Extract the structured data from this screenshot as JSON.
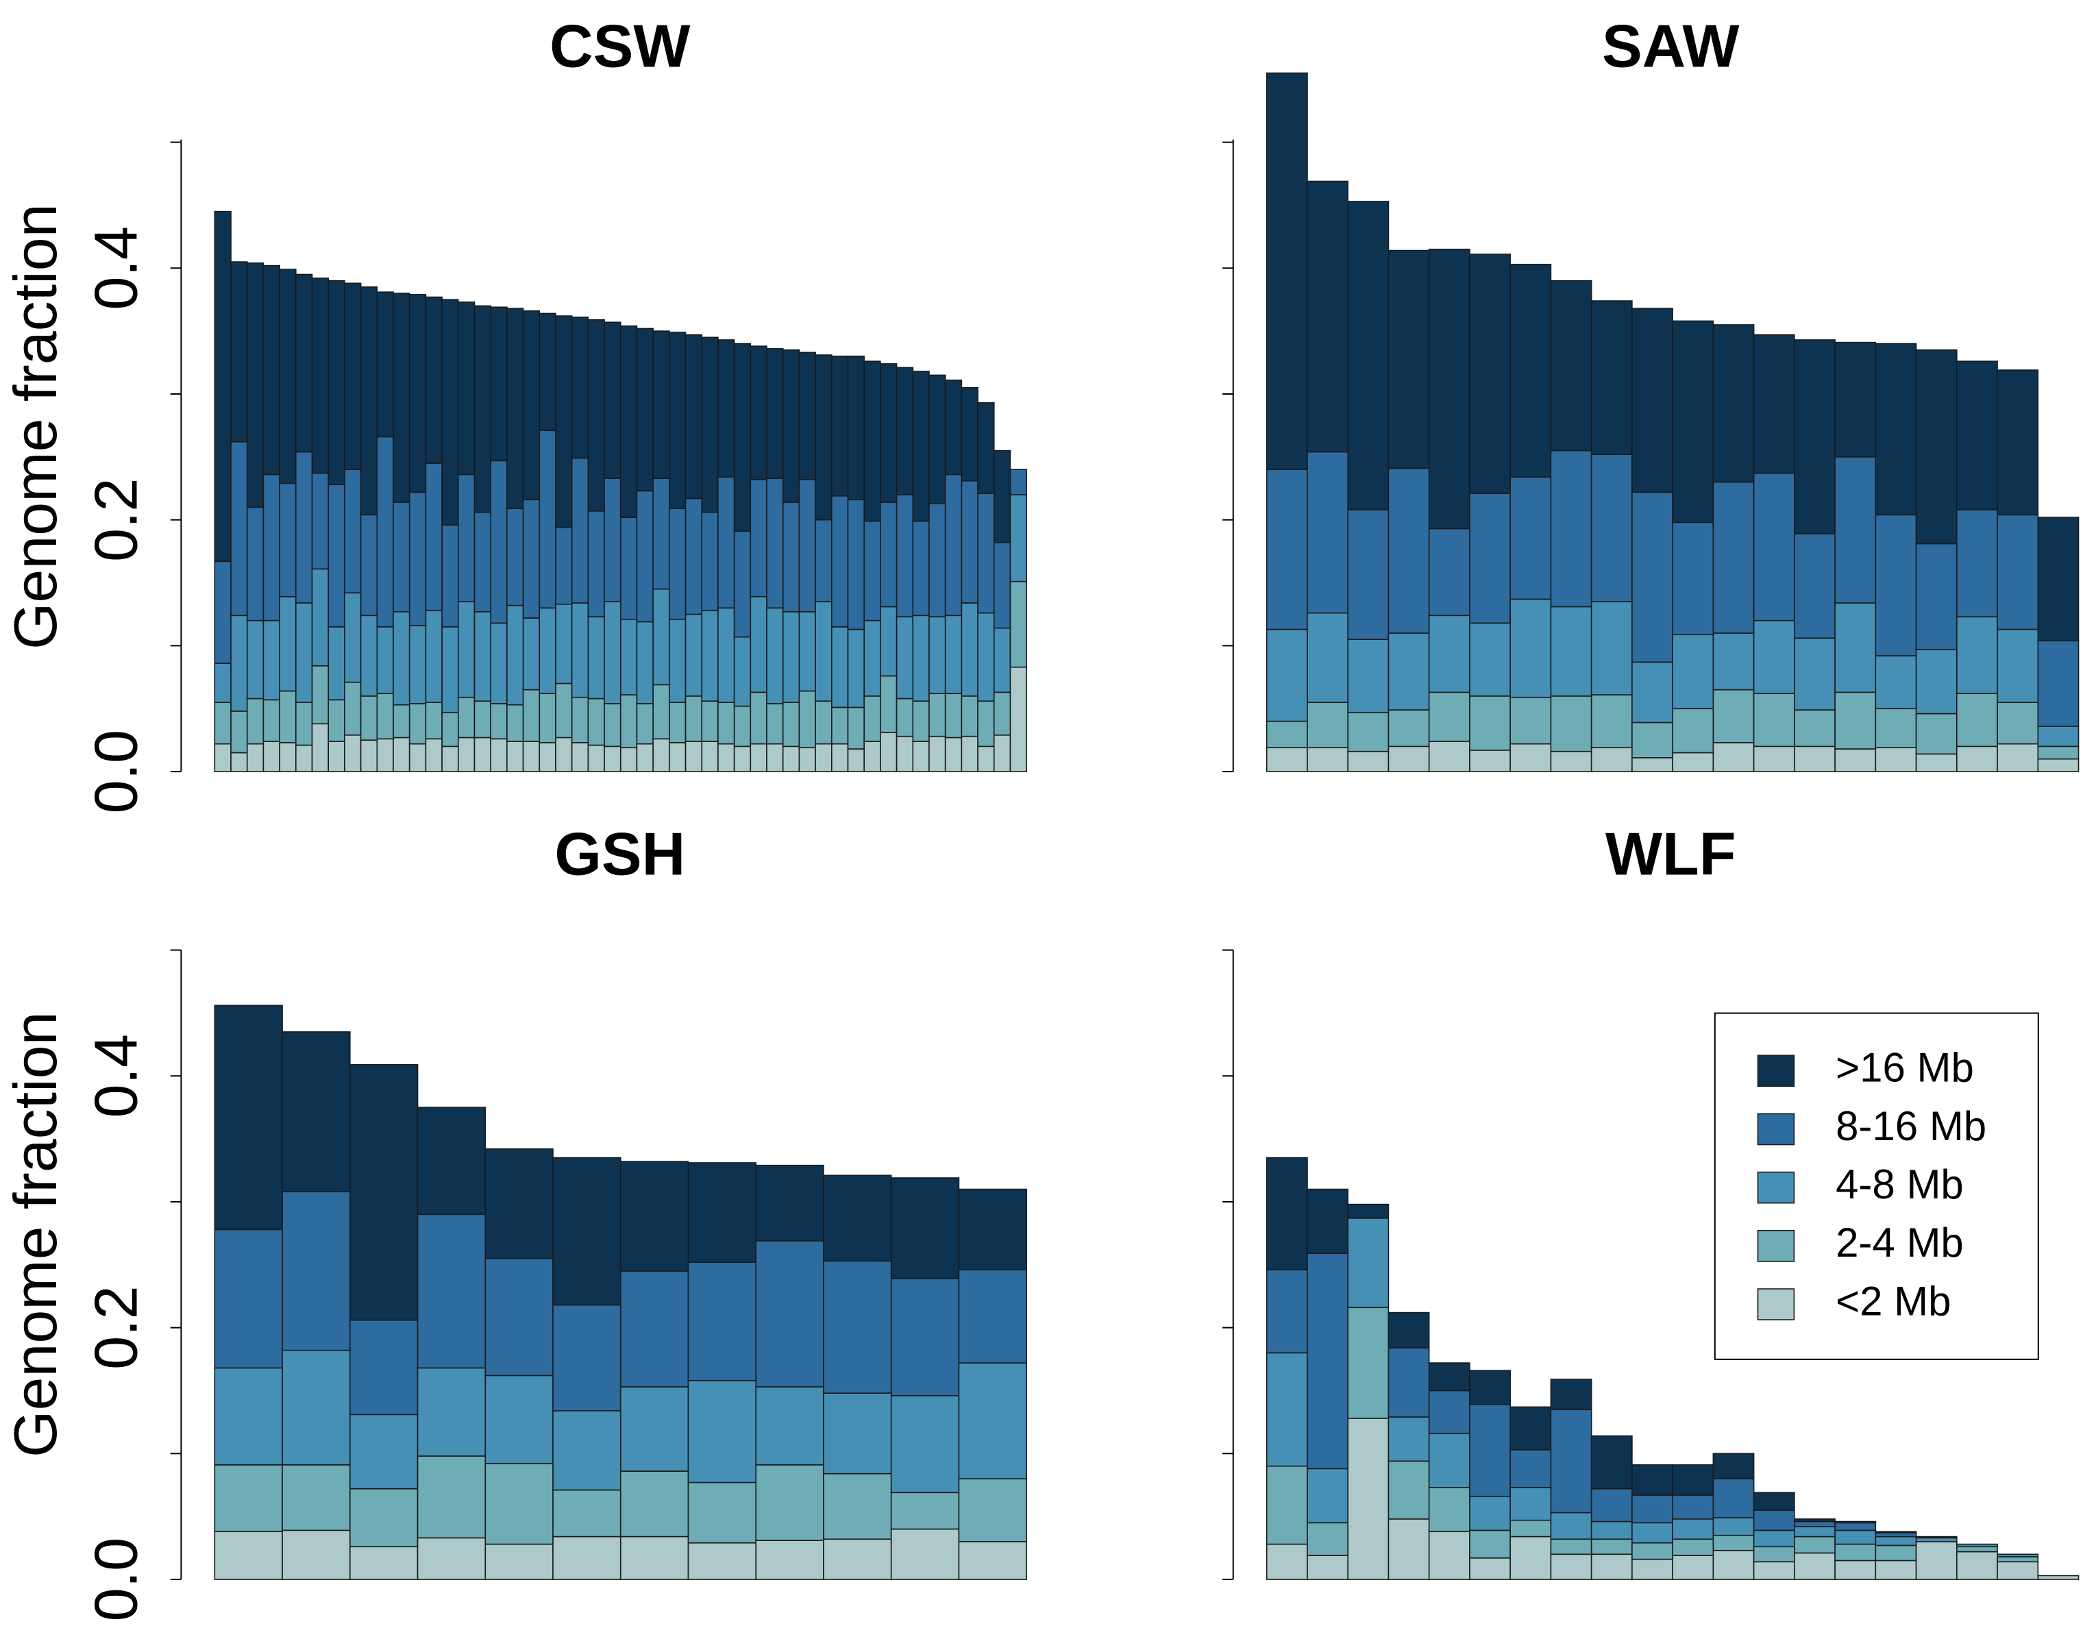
{
  "colors": {
    ">16 Mb": "#0d3351",
    "8-16 Mb": "#2e6b9f",
    "4-8 Mb": "#4690b5",
    "2-4 Mb": "#6eacb6",
    "<2 Mb": "#adc9c9"
  },
  "chart_data": [
    {
      "type": "bar",
      "stacked": true,
      "title": "CSW",
      "ylabel": "Genome fraction",
      "ylim": [
        0,
        0.5
      ],
      "yticks": [
        "0.0",
        "0.2",
        "0.4"
      ],
      "segments": [
        "<2 Mb",
        "2-4 Mb",
        "4-8 Mb",
        "8-16 Mb",
        ">16 Mb"
      ],
      "totals": [
        0.445,
        0.405,
        0.404,
        0.402,
        0.399,
        0.395,
        0.392,
        0.39,
        0.388,
        0.385,
        0.381,
        0.38,
        0.379,
        0.377,
        0.375,
        0.373,
        0.37,
        0.369,
        0.368,
        0.366,
        0.364,
        0.362,
        0.361,
        0.359,
        0.357,
        0.354,
        0.352,
        0.35,
        0.349,
        0.347,
        0.345,
        0.343,
        0.34,
        0.338,
        0.336,
        0.335,
        0.333,
        0.331,
        0.33,
        0.328,
        0.326,
        0.324,
        0.321,
        0.318,
        0.315,
        0.311,
        0.305,
        0.293,
        0.255,
        0.24
      ],
      "series": [
        {
          "name": "<2 Mb",
          "values": [
            0.022,
            0.015,
            0.022,
            0.024,
            0.023,
            0.021,
            0.038,
            0.024,
            0.029,
            0.025,
            0.026,
            0.027,
            0.022,
            0.026,
            0.02,
            0.027,
            0.027,
            0.026,
            0.024,
            0.024,
            0.023,
            0.027,
            0.023,
            0.021,
            0.02,
            0.019,
            0.022,
            0.026,
            0.023,
            0.024,
            0.024,
            0.022,
            0.02,
            0.022,
            0.022,
            0.02,
            0.019,
            0.022,
            0.022,
            0.018,
            0.024,
            0.031,
            0.028,
            0.024,
            0.028,
            0.027,
            0.028,
            0.02,
            0.029,
            0.083
          ]
        },
        {
          "name": "2-4 Mb",
          "values": [
            0.033,
            0.033,
            0.036,
            0.033,
            0.041,
            0.034,
            0.046,
            0.033,
            0.042,
            0.035,
            0.036,
            0.026,
            0.032,
            0.029,
            0.027,
            0.032,
            0.029,
            0.028,
            0.029,
            0.041,
            0.039,
            0.043,
            0.036,
            0.037,
            0.034,
            0.042,
            0.032,
            0.043,
            0.032,
            0.036,
            0.032,
            0.033,
            0.032,
            0.041,
            0.032,
            0.035,
            0.045,
            0.034,
            0.029,
            0.033,
            0.036,
            0.045,
            0.03,
            0.032,
            0.034,
            0.035,
            0.032,
            0.036,
            0.034,
            0.068
          ]
        },
        {
          "name": "4-8 Mb",
          "values": [
            0.031,
            0.076,
            0.062,
            0.063,
            0.075,
            0.079,
            0.077,
            0.058,
            0.071,
            0.064,
            0.053,
            0.074,
            0.062,
            0.073,
            0.068,
            0.076,
            0.071,
            0.064,
            0.079,
            0.057,
            0.068,
            0.063,
            0.075,
            0.065,
            0.081,
            0.06,
            0.065,
            0.076,
            0.066,
            0.065,
            0.072,
            0.075,
            0.055,
            0.076,
            0.076,
            0.072,
            0.063,
            0.079,
            0.064,
            0.062,
            0.06,
            0.055,
            0.065,
            0.068,
            0.061,
            0.062,
            0.074,
            0.07,
            0.051,
            0.069
          ]
        },
        {
          "name": "8-16 Mb",
          "values": [
            0.081,
            0.138,
            0.09,
            0.116,
            0.09,
            0.12,
            0.076,
            0.113,
            0.098,
            0.08,
            0.151,
            0.087,
            0.106,
            0.117,
            0.081,
            0.101,
            0.079,
            0.129,
            0.077,
            0.094,
            0.141,
            0.061,
            0.115,
            0.084,
            0.098,
            0.081,
            0.104,
            0.088,
            0.088,
            0.092,
            0.078,
            0.104,
            0.084,
            0.093,
            0.103,
            0.087,
            0.105,
            0.065,
            0.104,
            0.103,
            0.079,
            0.083,
            0.097,
            0.075,
            0.09,
            0.112,
            0.097,
            0.095,
            0.068,
            0.02
          ]
        },
        {
          "name": ">16 Mb",
          "values": [
            0.278,
            0.143,
            0.194,
            0.166,
            0.17,
            0.141,
            0.155,
            0.162,
            0.148,
            0.181,
            0.115,
            0.166,
            0.157,
            0.132,
            0.179,
            0.137,
            0.164,
            0.122,
            0.159,
            0.15,
            0.093,
            0.168,
            0.112,
            0.152,
            0.124,
            0.152,
            0.129,
            0.117,
            0.14,
            0.13,
            0.139,
            0.109,
            0.149,
            0.106,
            0.103,
            0.121,
            0.101,
            0.131,
            0.111,
            0.114,
            0.127,
            0.11,
            0.101,
            0.119,
            0.102,
            0.075,
            0.074,
            0.072,
            0.073,
            0.0
          ]
        }
      ]
    },
    {
      "type": "bar",
      "stacked": true,
      "title": "SAW",
      "ylabel": "",
      "ylim": [
        0,
        0.5
      ],
      "yticks": [
        "0.0",
        "0.2",
        "0.4"
      ],
      "segments": [
        "<2 Mb",
        "2-4 Mb",
        "4-8 Mb",
        "8-16 Mb",
        ">16 Mb"
      ],
      "series": [
        {
          "name": "<2 Mb",
          "values": [
            0.019,
            0.019,
            0.016,
            0.02,
            0.024,
            0.017,
            0.022,
            0.016,
            0.019,
            0.011,
            0.015,
            0.023,
            0.02,
            0.02,
            0.018,
            0.019,
            0.014,
            0.02,
            0.022,
            0.01
          ]
        },
        {
          "name": "2-4 Mb",
          "values": [
            0.021,
            0.036,
            0.031,
            0.029,
            0.039,
            0.043,
            0.037,
            0.044,
            0.042,
            0.028,
            0.035,
            0.042,
            0.042,
            0.029,
            0.045,
            0.031,
            0.032,
            0.042,
            0.033,
            0.01
          ]
        },
        {
          "name": "4-8 Mb",
          "values": [
            0.073,
            0.071,
            0.058,
            0.061,
            0.061,
            0.058,
            0.078,
            0.071,
            0.074,
            0.048,
            0.059,
            0.045,
            0.058,
            0.057,
            0.071,
            0.042,
            0.051,
            0.061,
            0.058,
            0.016
          ]
        },
        {
          "name": "8-16 Mb",
          "values": [
            0.127,
            0.128,
            0.103,
            0.131,
            0.069,
            0.103,
            0.097,
            0.124,
            0.117,
            0.135,
            0.089,
            0.12,
            0.117,
            0.083,
            0.116,
            0.112,
            0.084,
            0.085,
            0.091,
            0.068
          ]
        },
        {
          "name": ">16 Mb",
          "values": [
            0.315,
            0.215,
            0.245,
            0.173,
            0.222,
            0.19,
            0.169,
            0.135,
            0.122,
            0.146,
            0.16,
            0.125,
            0.11,
            0.154,
            0.091,
            0.136,
            0.154,
            0.118,
            0.115,
            0.098
          ]
        }
      ]
    },
    {
      "type": "bar",
      "stacked": true,
      "title": "GSH",
      "ylabel": "Genome fraction",
      "ylim": [
        0,
        0.5
      ],
      "yticks": [
        "0.0",
        "0.2",
        "0.4"
      ],
      "segments": [
        "<2 Mb",
        "2-4 Mb",
        "4-8 Mb",
        "8-16 Mb",
        ">16 Mb"
      ],
      "series": [
        {
          "name": "<2 Mb",
          "values": [
            0.038,
            0.039,
            0.026,
            0.033,
            0.028,
            0.034,
            0.034,
            0.029,
            0.031,
            0.032,
            0.04,
            0.03
          ]
        },
        {
          "name": "2-4 Mb",
          "values": [
            0.053,
            0.052,
            0.046,
            0.065,
            0.064,
            0.037,
            0.052,
            0.048,
            0.06,
            0.052,
            0.029,
            0.05
          ]
        },
        {
          "name": "4-8 Mb",
          "values": [
            0.077,
            0.091,
            0.059,
            0.07,
            0.07,
            0.063,
            0.067,
            0.081,
            0.062,
            0.064,
            0.077,
            0.092
          ]
        },
        {
          "name": "8-16 Mb",
          "values": [
            0.11,
            0.126,
            0.075,
            0.122,
            0.093,
            0.084,
            0.092,
            0.094,
            0.116,
            0.105,
            0.093,
            0.074
          ]
        },
        {
          "name": ">16 Mb",
          "values": [
            0.178,
            0.127,
            0.203,
            0.085,
            0.087,
            0.117,
            0.087,
            0.079,
            0.06,
            0.068,
            0.08,
            0.064
          ]
        }
      ]
    },
    {
      "type": "bar",
      "stacked": true,
      "title": "WLF",
      "ylabel": "",
      "ylim": [
        0,
        0.5
      ],
      "yticks": [
        "0.0",
        "0.2",
        "0.4"
      ],
      "segments": [
        "<2 Mb",
        "2-4 Mb",
        "4-8 Mb",
        "8-16 Mb",
        ">16 Mb"
      ],
      "series": [
        {
          "name": "<2 Mb",
          "values": [
            0.028,
            0.019,
            0.128,
            0.048,
            0.038,
            0.017,
            0.034,
            0.02,
            0.02,
            0.016,
            0.019,
            0.023,
            0.014,
            0.021,
            0.015,
            0.015,
            0.03,
            0.022,
            0.014,
            0.003
          ]
        },
        {
          "name": "2-4 Mb",
          "values": [
            0.062,
            0.026,
            0.088,
            0.046,
            0.035,
            0.022,
            0.013,
            0.012,
            0.012,
            0.013,
            0.013,
            0.012,
            0.012,
            0.013,
            0.013,
            0.012,
            0.0,
            0.004,
            0.004,
            0.0
          ]
        },
        {
          "name": "4-8 Mb",
          "values": [
            0.09,
            0.043,
            0.071,
            0.035,
            0.043,
            0.027,
            0.026,
            0.021,
            0.014,
            0.016,
            0.016,
            0.014,
            0.013,
            0.008,
            0.011,
            0.007,
            0.003,
            0.002,
            0.002,
            0.0
          ]
        },
        {
          "name": "8-16 Mb",
          "values": [
            0.066,
            0.171,
            0.0,
            0.055,
            0.034,
            0.073,
            0.03,
            0.082,
            0.026,
            0.022,
            0.019,
            0.031,
            0.016,
            0.004,
            0.006,
            0.003,
            0.0,
            0.0,
            0.0,
            0.0
          ]
        },
        {
          "name": ">16 Mb",
          "values": [
            0.089,
            0.051,
            0.011,
            0.028,
            0.022,
            0.027,
            0.034,
            0.024,
            0.042,
            0.024,
            0.024,
            0.02,
            0.014,
            0.002,
            0.001,
            0.001,
            0.001,
            0.0,
            0.0,
            0.0
          ]
        }
      ]
    }
  ],
  "legend": {
    "items": [
      ">16 Mb",
      "8-16 Mb",
      "4-8 Mb",
      "2-4 Mb",
      "<2 Mb"
    ]
  }
}
